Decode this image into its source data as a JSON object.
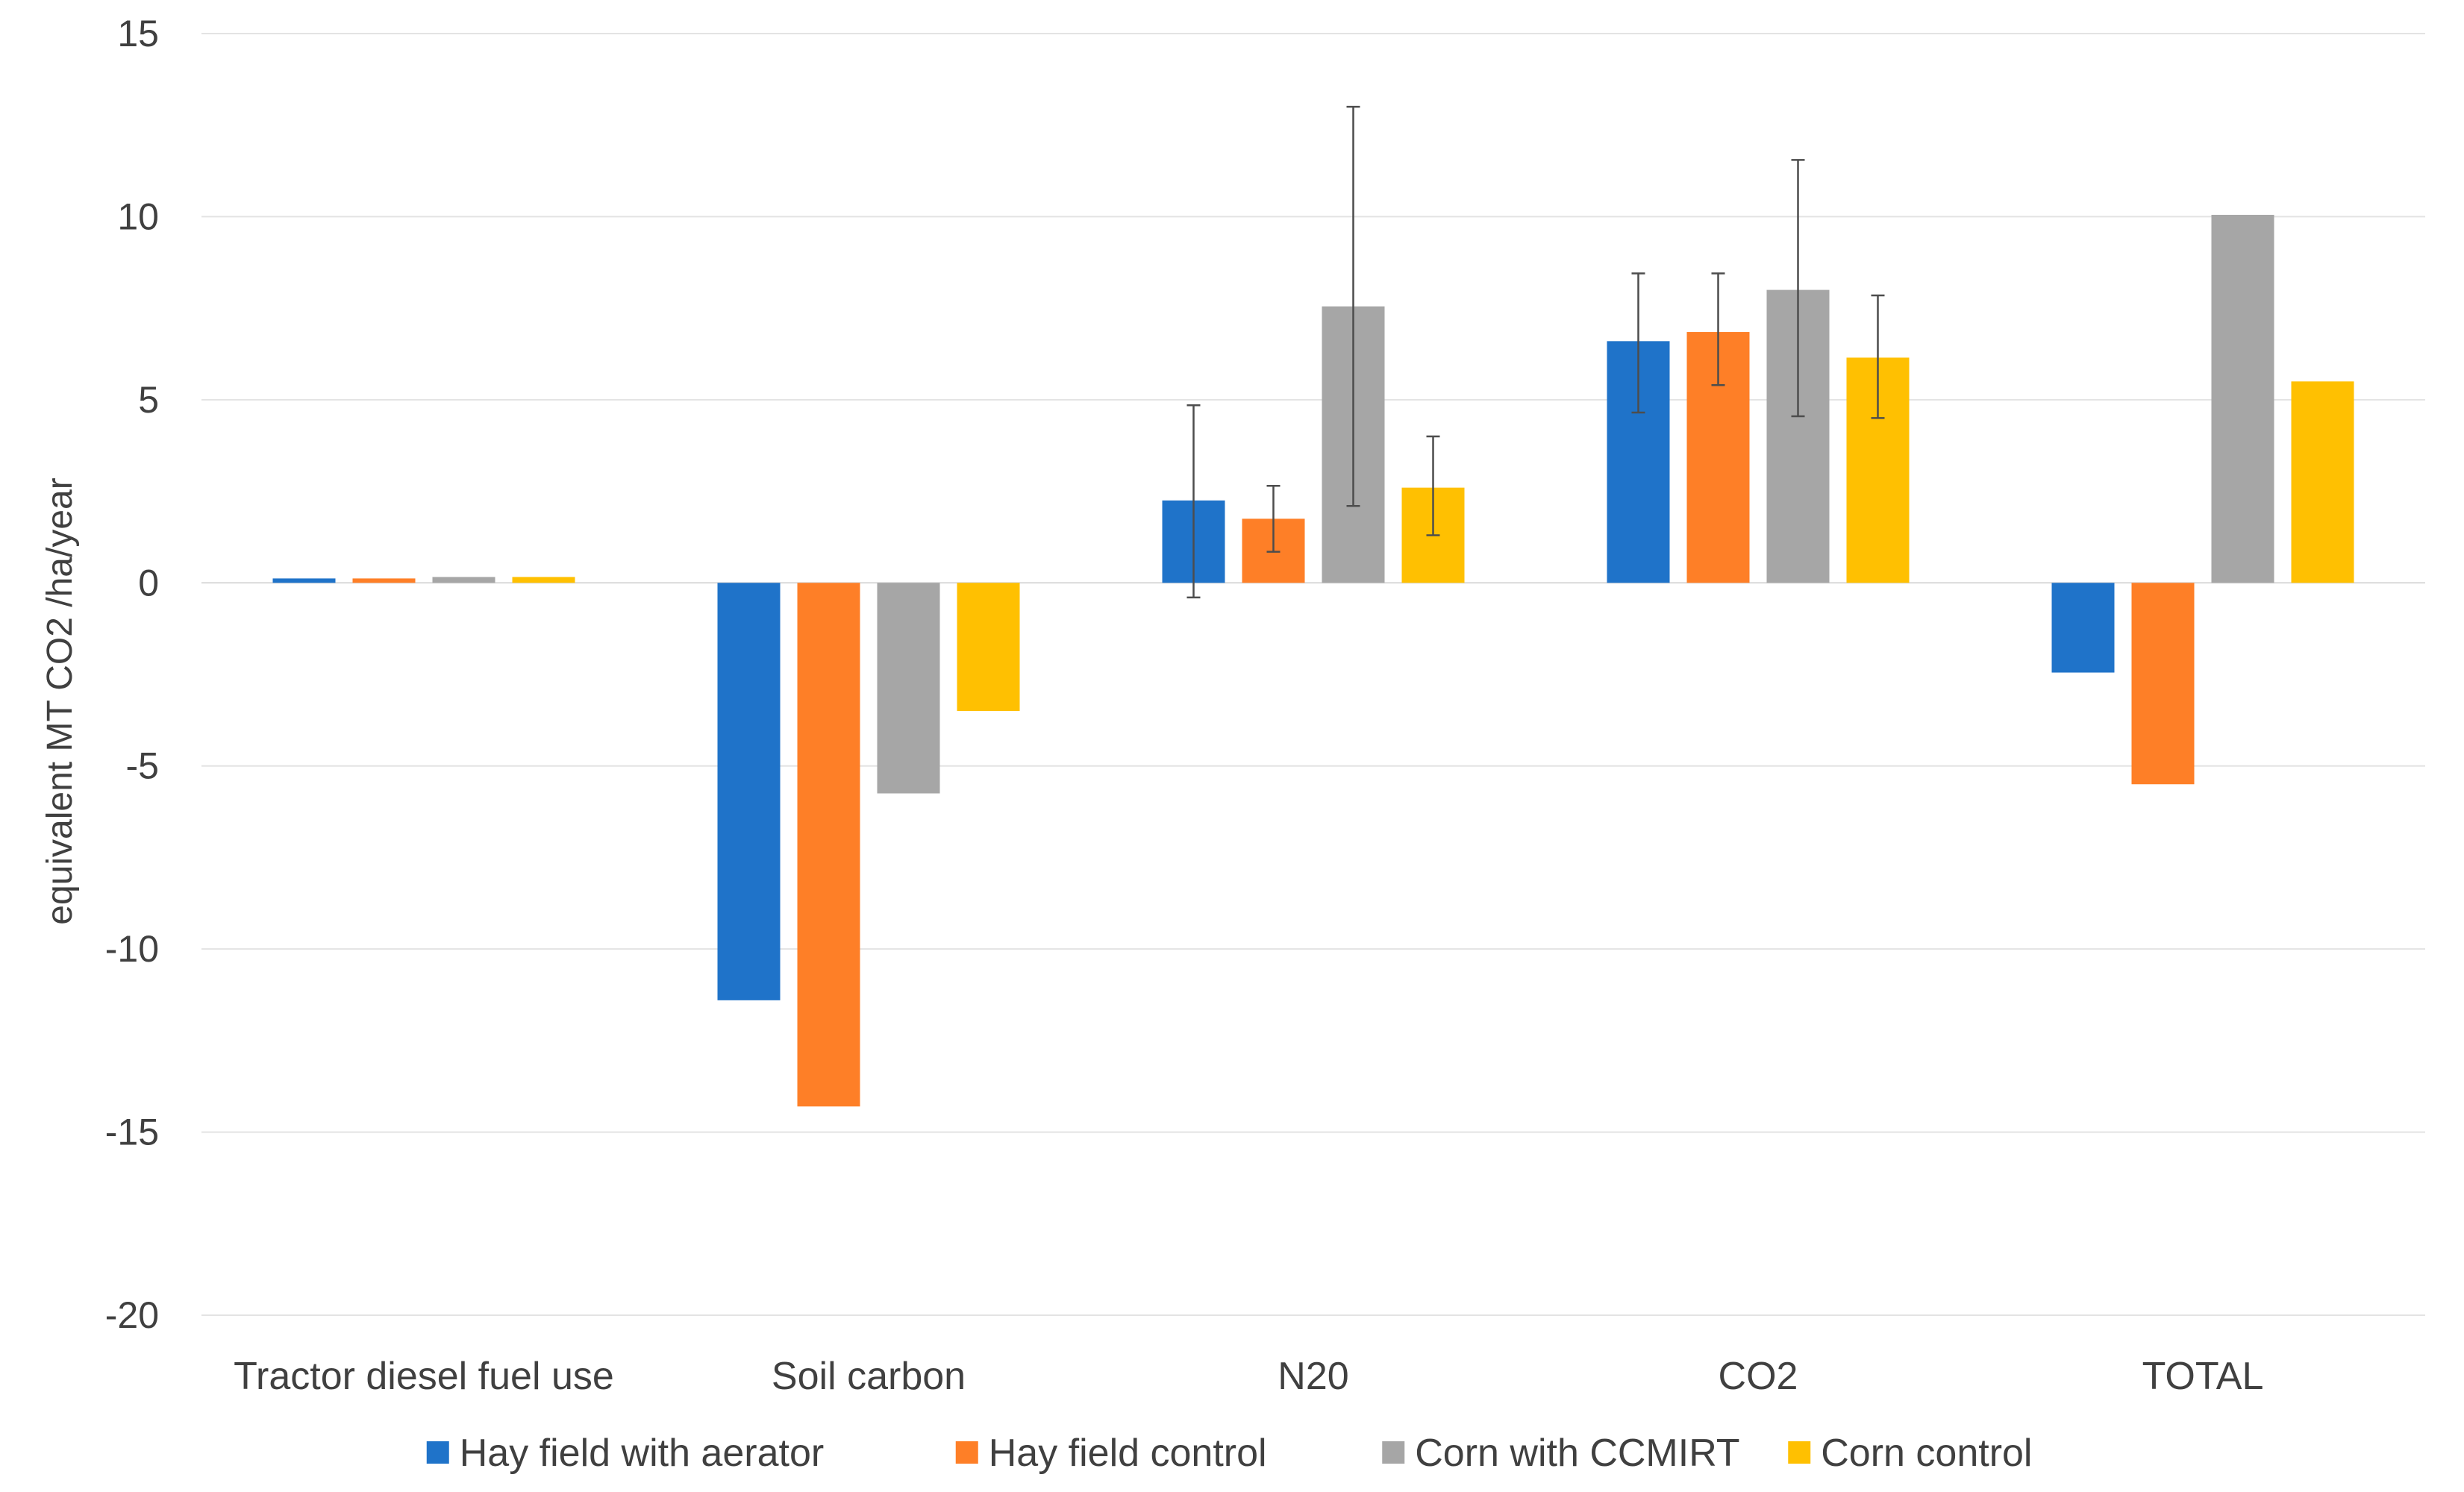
{
  "chart_data": {
    "type": "bar",
    "title": "",
    "xlabel": "",
    "ylabel": "equivalent MT CO2 /ha/year",
    "ylim": [
      -20,
      15
    ],
    "yticks": [
      15,
      10,
      5,
      0,
      -5,
      -10,
      -15,
      -20
    ],
    "grid": true,
    "legend_position": "bottom",
    "categories": [
      "Tractor diesel fuel use",
      "Soil carbon",
      "N20",
      "CO2",
      "TOTAL"
    ],
    "series": [
      {
        "name": "Hay field with aerator",
        "color": "#1f73c9",
        "values": [
          0.12,
          -11.4,
          2.25,
          6.6,
          -2.45
        ],
        "error_low": [
          null,
          null,
          -0.4,
          4.65,
          null
        ],
        "error_high": [
          null,
          null,
          4.85,
          8.45,
          null
        ]
      },
      {
        "name": "Hay field control",
        "color": "#fe7f27",
        "values": [
          0.12,
          -14.3,
          1.75,
          6.85,
          -5.5
        ],
        "error_low": [
          null,
          null,
          0.85,
          5.4,
          null
        ],
        "error_high": [
          null,
          null,
          2.65,
          8.45,
          null
        ]
      },
      {
        "name": "Corn with CCMIRT",
        "color": "#a6a6a6",
        "values": [
          0.16,
          -5.75,
          7.55,
          8.0,
          10.05
        ],
        "error_low": [
          null,
          null,
          2.1,
          4.55,
          null
        ],
        "error_high": [
          null,
          null,
          13.0,
          11.55,
          null
        ]
      },
      {
        "name": "Corn control",
        "color": "#ffc001",
        "values": [
          0.16,
          -3.5,
          2.6,
          6.15,
          5.5
        ],
        "error_low": [
          null,
          null,
          1.3,
          4.5,
          null
        ],
        "error_high": [
          null,
          null,
          4.0,
          7.85,
          null
        ]
      }
    ]
  }
}
